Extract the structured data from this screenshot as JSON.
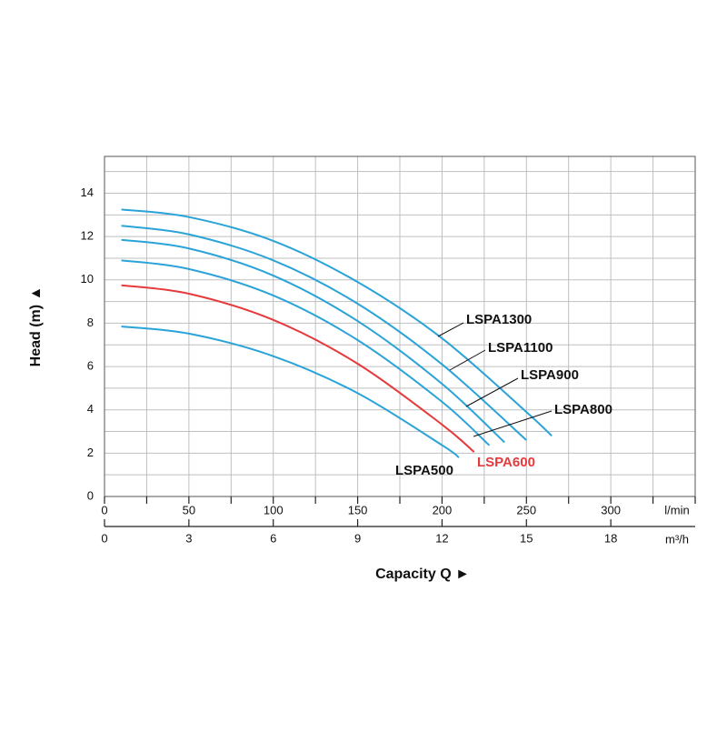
{
  "chart_data": {
    "type": "line",
    "y_label": "Head (m)  ▲",
    "x_label": "Capacity Q   ►",
    "x_unit": "l/min",
    "x2_unit": "m³/h",
    "xlim": [
      0,
      350
    ],
    "xticks": [
      0,
      50,
      100,
      150,
      200,
      250,
      300
    ],
    "x2lim": [
      0,
      21
    ],
    "x2ticks": [
      0,
      3,
      6,
      9,
      12,
      15,
      18
    ],
    "ylim": [
      0,
      15.7
    ],
    "yticks": [
      0,
      2,
      4,
      6,
      8,
      10,
      12,
      14
    ],
    "grid": true,
    "series": [
      {
        "name": "LSPA1300",
        "color": "#2aa3d8",
        "x": [
          10,
          50,
          100,
          150,
          200,
          250,
          265
        ],
        "values": [
          13.25,
          12.9,
          11.8,
          9.9,
          7.3,
          3.9,
          2.8
        ]
      },
      {
        "name": "LSPA1100",
        "color": "#2aa3d8",
        "x": [
          10,
          50,
          100,
          150,
          200,
          250
        ],
        "values": [
          12.5,
          12.1,
          10.9,
          8.9,
          6.1,
          2.6
        ]
      },
      {
        "name": "LSPA900",
        "color": "#2aa3d8",
        "x": [
          10,
          50,
          100,
          150,
          200,
          237
        ],
        "values": [
          11.85,
          11.45,
          10.2,
          8.1,
          5.2,
          2.5
        ]
      },
      {
        "name": "LSPA800",
        "color": "#2aa3d8",
        "x": [
          10,
          50,
          100,
          150,
          200,
          228
        ],
        "values": [
          10.9,
          10.5,
          9.28,
          7.22,
          4.37,
          2.36
        ]
      },
      {
        "name": "LSPA600",
        "color": "#e63a3c",
        "x": [
          10,
          50,
          100,
          150,
          200,
          219
        ],
        "values": [
          9.75,
          9.36,
          8.15,
          6.13,
          3.32,
          2.05
        ]
      },
      {
        "name": "LSPA500",
        "color": "#2aa3d8",
        "x": [
          10,
          50,
          100,
          150,
          200,
          210
        ],
        "values": [
          7.85,
          7.52,
          6.48,
          4.77,
          2.37,
          1.8
        ]
      }
    ]
  }
}
